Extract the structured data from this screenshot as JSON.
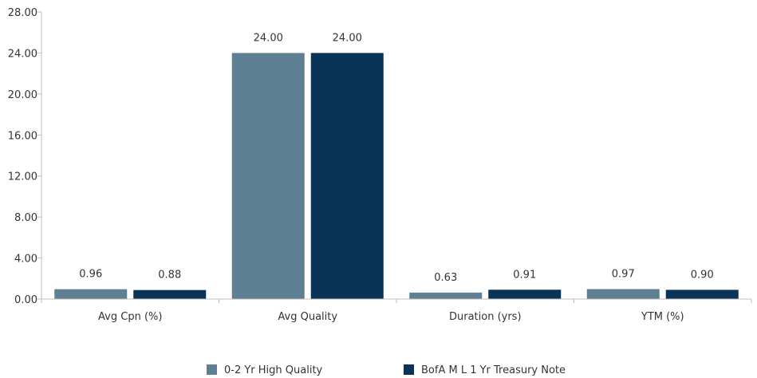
{
  "chart_data": {
    "type": "bar",
    "categories": [
      "Avg Cpn (%)",
      "Avg Quality",
      "Duration (yrs)",
      "YTM  (%)"
    ],
    "series": [
      {
        "name": "0-2 Yr High Quality",
        "color": "#5f7f93",
        "values": [
          0.96,
          24.0,
          0.63,
          0.97
        ],
        "labels": [
          "0.96",
          "24.00",
          "0.63",
          "0.97"
        ]
      },
      {
        "name": "BofA M L 1 Yr Treasury Note",
        "color": "#0a3358",
        "values": [
          0.88,
          24.0,
          0.91,
          0.9
        ],
        "labels": [
          "0.88",
          "24.00",
          "0.91",
          "0.90"
        ]
      }
    ],
    "ylim": [
      0,
      28
    ],
    "yticks": [
      "0.00",
      "4.00",
      "8.00",
      "12.00",
      "16.00",
      "20.00",
      "24.00",
      "28.00"
    ],
    "ytick_values": [
      0,
      4,
      8,
      12,
      16,
      20,
      24,
      28
    ],
    "title": "",
    "xlabel": "",
    "ylabel": "",
    "legend_position": "bottom",
    "grid": false
  }
}
